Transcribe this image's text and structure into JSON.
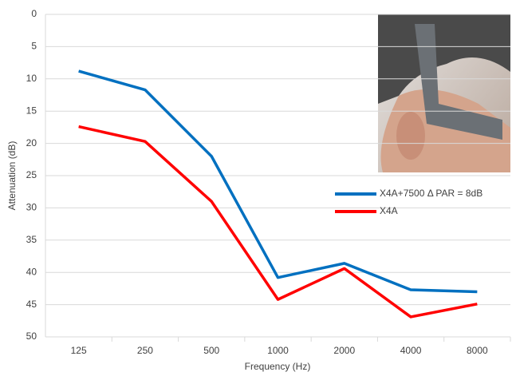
{
  "chart_data": {
    "type": "line",
    "x_label": "Frequency (Hz)",
    "y_label": "Attenuation (dB)",
    "categories": [
      "125",
      "250",
      "500",
      "1000",
      "2000",
      "4000",
      "8000"
    ],
    "series": [
      {
        "name": "X4A+7500  Δ PAR = 8dB",
        "color": "#0070c0",
        "values": [
          8.8,
          11.7,
          22,
          40.8,
          38.6,
          42.7,
          43
        ]
      },
      {
        "name": "X4A",
        "color": "#ff0000",
        "values": [
          17.4,
          19.7,
          29,
          44.2,
          39.4,
          46.9,
          44.9
        ]
      }
    ],
    "ylim": [
      0,
      50
    ],
    "yticks": [
      0,
      5,
      10,
      15,
      20,
      25,
      30,
      35,
      40,
      45,
      50
    ],
    "y_inverted": true,
    "grid": true
  }
}
